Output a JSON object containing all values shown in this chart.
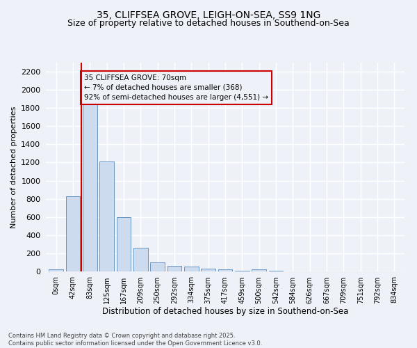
{
  "title_line1": "35, CLIFFSEA GROVE, LEIGH-ON-SEA, SS9 1NG",
  "title_line2": "Size of property relative to detached houses in Southend-on-Sea",
  "xlabel": "Distribution of detached houses by size in Southend-on-Sea",
  "ylabel": "Number of detached properties",
  "footnote": "Contains HM Land Registry data © Crown copyright and database right 2025.\nContains public sector information licensed under the Open Government Licence v3.0.",
  "bar_labels": [
    "0sqm",
    "42sqm",
    "83sqm",
    "125sqm",
    "167sqm",
    "209sqm",
    "250sqm",
    "292sqm",
    "334sqm",
    "375sqm",
    "417sqm",
    "459sqm",
    "500sqm",
    "542sqm",
    "584sqm",
    "626sqm",
    "667sqm",
    "709sqm",
    "751sqm",
    "792sqm",
    "834sqm"
  ],
  "bar_values": [
    20,
    830,
    1840,
    1210,
    600,
    260,
    100,
    60,
    50,
    30,
    20,
    5,
    20,
    5,
    0,
    0,
    0,
    0,
    0,
    0,
    0
  ],
  "bar_color": "#ccdcee",
  "bar_edge_color": "#5588bb",
  "vline_x": 1.5,
  "vline_color": "#cc0000",
  "annotation_text": "35 CLIFFSEA GROVE: 70sqm\n← 7% of detached houses are smaller (368)\n92% of semi-detached houses are larger (4,551) →",
  "annotation_box_color": "#cc0000",
  "annotation_fontsize": 7.5,
  "ylim": [
    0,
    2300
  ],
  "yticks": [
    0,
    200,
    400,
    600,
    800,
    1000,
    1200,
    1400,
    1600,
    1800,
    2000,
    2200
  ],
  "bg_color": "#eef2f8",
  "grid_color": "#ffffff",
  "title_fontsize": 10,
  "subtitle_fontsize": 9
}
